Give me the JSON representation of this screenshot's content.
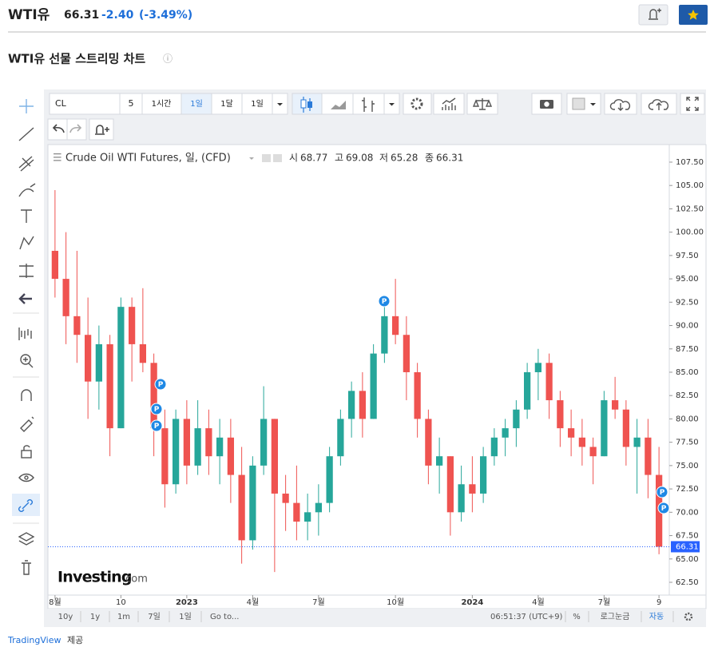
{
  "header": {
    "symbol": "WTI유",
    "price": "66.31",
    "change": "-2.40",
    "change_pct": "(-3.49%)",
    "page_title": "WTI유 선물 스트리밍 차트",
    "info_icon": "ⓘ"
  },
  "toolbar": {
    "symbol_input": "CL",
    "multiplier": "5",
    "intervals": [
      "1시간",
      "1일",
      "1달",
      "1일"
    ]
  },
  "chart_data": {
    "type": "candlestick",
    "grid": false,
    "legend": {
      "title": "Crude Oil WTI Futures, 일, (CFD)",
      "open_label": "시",
      "open": 68.77,
      "high_label": "고",
      "high": 69.08,
      "low_label": "저",
      "low": 65.28,
      "close_label": "종",
      "close": 66.31
    },
    "categories": [
      "8월",
      null,
      null,
      null,
      null,
      null,
      "10",
      null,
      null,
      null,
      null,
      null,
      "2023",
      null,
      null,
      null,
      null,
      null,
      "4월",
      null,
      null,
      null,
      null,
      null,
      "7월",
      null,
      null,
      null,
      null,
      null,
      null,
      "10월",
      null,
      null,
      null,
      null,
      null,
      null,
      "2024",
      null,
      null,
      null,
      null,
      null,
      "4월",
      null,
      null,
      null,
      null,
      null,
      "7월",
      null,
      null,
      null,
      null,
      "9"
    ],
    "open": [
      98,
      95,
      91,
      89,
      84,
      88,
      79,
      92,
      88,
      86,
      79,
      73,
      80,
      75,
      79,
      76,
      78,
      74,
      67,
      75,
      80,
      72,
      71,
      69,
      70,
      71,
      76,
      80,
      83,
      80,
      87,
      91,
      89,
      85,
      80,
      75,
      76,
      70,
      73,
      72,
      76,
      78,
      79,
      81,
      85,
      86,
      82,
      79,
      78,
      77,
      76,
      82,
      81,
      77,
      78,
      74
    ],
    "high": [
      104.5,
      100,
      98,
      93,
      90,
      89,
      93,
      93,
      94,
      87,
      81,
      81,
      82,
      82,
      81,
      80,
      80,
      77,
      76,
      83.5,
      80,
      74,
      75,
      72,
      73,
      77,
      81,
      84,
      85,
      88,
      93,
      95,
      91,
      86,
      81,
      78,
      76,
      75,
      76,
      77,
      79,
      80,
      82,
      86,
      87.5,
      87,
      83,
      81,
      80,
      78,
      83,
      84.5,
      82,
      80,
      80,
      77
    ],
    "low": [
      93,
      88,
      86,
      80,
      81,
      76,
      79,
      84,
      85,
      76,
      70.5,
      72,
      73,
      74,
      74,
      73,
      71,
      64.5,
      66,
      74,
      63.6,
      68,
      67,
      67,
      67.5,
      70,
      75,
      78,
      78,
      80,
      86,
      88,
      82,
      78,
      73,
      72,
      67.5,
      69,
      70,
      71,
      75,
      76,
      77,
      80,
      82,
      80,
      77,
      76,
      75,
      73,
      76,
      80,
      75,
      72,
      71.5,
      65.5
    ],
    "close": [
      95,
      91,
      89,
      84,
      88,
      79,
      92,
      88,
      86,
      79,
      73,
      80,
      75,
      79,
      76,
      78,
      74,
      67,
      75,
      80,
      72,
      71,
      69,
      70,
      71,
      76,
      80,
      83,
      80,
      87,
      91,
      89,
      85,
      80,
      75,
      76,
      70,
      73,
      72,
      76,
      78,
      79,
      81,
      85,
      86,
      82,
      79,
      78,
      77,
      76,
      82,
      81,
      77,
      78,
      74,
      66.31
    ],
    "up_color": "#26a69a",
    "down_color": "#ef5350",
    "last_value": 66.31,
    "last_line_color": "#2962ff",
    "event_marker": "P",
    "ylim": [
      61.13,
      109.38
    ],
    "yticks": [
      {
        "value": 62.5,
        "label": "62.50"
      },
      {
        "value": 65,
        "label": "65.00"
      },
      {
        "value": 67.5,
        "label": "67.50"
      },
      {
        "value": 70,
        "label": "70.00"
      },
      {
        "value": 72.5,
        "label": "72.50"
      },
      {
        "value": 75,
        "label": "75.00"
      },
      {
        "value": 77.5,
        "label": "77.50"
      },
      {
        "value": 80,
        "label": "80.00"
      },
      {
        "value": 82.5,
        "label": "82.50"
      },
      {
        "value": 85,
        "label": "85.00"
      },
      {
        "value": 87.5,
        "label": "87.50"
      },
      {
        "value": 90,
        "label": "90.00"
      },
      {
        "value": 92.5,
        "label": "92.50"
      },
      {
        "value": 95,
        "label": "95.00"
      },
      {
        "value": 97.5,
        "label": "97.50"
      },
      {
        "value": 100,
        "label": "100.00"
      },
      {
        "value": 102.5,
        "label": "102.50"
      },
      {
        "value": 105,
        "label": "105.00"
      },
      {
        "value": 107.5,
        "label": "107.50"
      }
    ],
    "watermark_bold": "Investing",
    "watermark_suffix": ".com"
  },
  "bottom_bar": {
    "ranges": [
      "10y",
      "1y",
      "1m",
      "7일",
      "1일"
    ],
    "goto": "Go to...",
    "time": "06:51:37 (UTC+9)",
    "percent": "%",
    "log": "로그눈금",
    "auto": "자동"
  },
  "footer": {
    "provider": "TradingView",
    "suffix": "제공"
  }
}
